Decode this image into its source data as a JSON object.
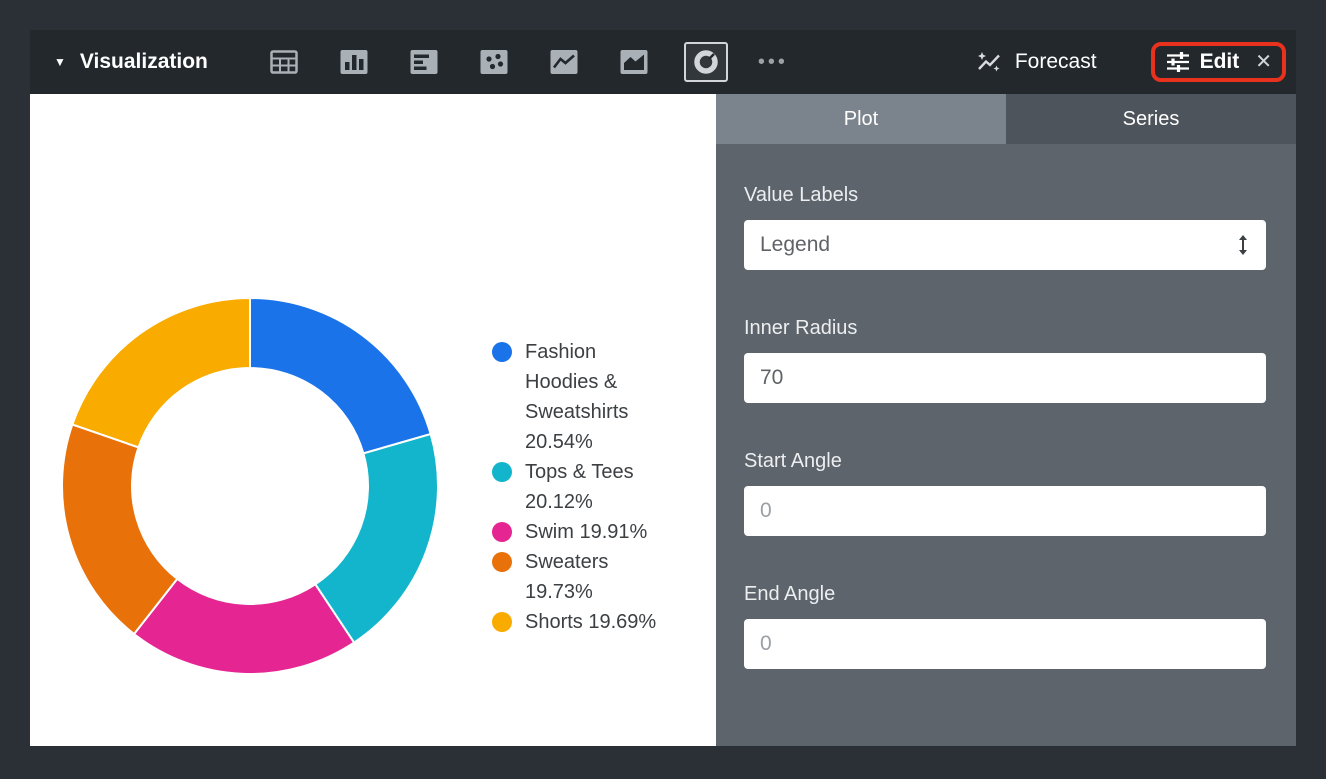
{
  "toolbar": {
    "title": "Visualization",
    "chart_types": [
      {
        "name": "table",
        "selected": false
      },
      {
        "name": "column",
        "selected": false
      },
      {
        "name": "bar",
        "selected": false
      },
      {
        "name": "scatter",
        "selected": false
      },
      {
        "name": "line",
        "selected": false
      },
      {
        "name": "area",
        "selected": false
      },
      {
        "name": "donut",
        "selected": true
      }
    ],
    "more_label": "•••",
    "forecast_label": "Forecast",
    "edit_label": "Edit"
  },
  "icons": {
    "chevron_down": "▼",
    "close": "✕"
  },
  "panel": {
    "tabs": [
      {
        "label": "Plot",
        "active": true
      },
      {
        "label": "Series",
        "active": false
      }
    ],
    "fields": [
      {
        "label": "Value Labels",
        "control": "select",
        "value": "Legend"
      },
      {
        "label": "Inner Radius",
        "control": "input",
        "value": "70"
      },
      {
        "label": "Start Angle",
        "control": "input",
        "placeholder": "0"
      },
      {
        "label": "End Angle",
        "control": "input",
        "placeholder": "0"
      }
    ]
  },
  "chart_data": {
    "type": "pie",
    "subtype": "donut",
    "inner_radius": 70,
    "start_angle": 0,
    "legend_position": "right",
    "categories": [
      "Fashion Hoodies & Sweatshirts",
      "Tops & Tees",
      "Swim",
      "Sweaters",
      "Shorts"
    ],
    "values": [
      20.54,
      20.12,
      19.91,
      19.73,
      19.69
    ],
    "unit": "%",
    "legend_labels": [
      "Fashion Hoodies & Sweatshirts 20.54%",
      "Tops & Tees 20.12%",
      "Swim 19.91%",
      "Sweaters 19.73%",
      "Shorts 19.69%"
    ],
    "colors": [
      "#1a73e8",
      "#12b5cb",
      "#e52592",
      "#e8710a",
      "#f9ab00"
    ]
  },
  "colors": {
    "annotation_highlight": "#e8321e",
    "panel_background": "#5d646c",
    "toolbar_background": "#23282d",
    "frame_background": "#2b3036",
    "active_tab": "#7b838c"
  }
}
